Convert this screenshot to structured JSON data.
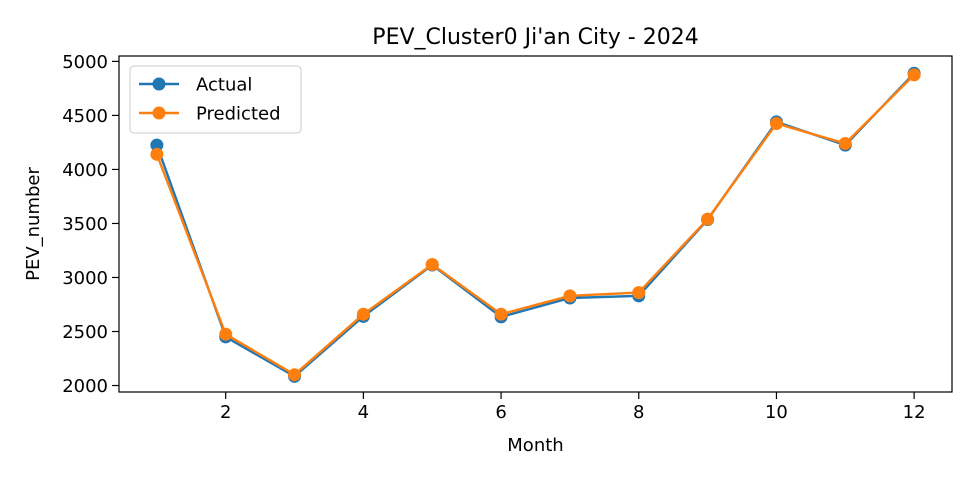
{
  "chart_data": {
    "type": "line",
    "title": "PEV_Cluster0 Ji'an City - 2024",
    "xlabel": "Month",
    "ylabel": "PEV_number",
    "x": [
      1,
      2,
      3,
      4,
      5,
      6,
      7,
      8,
      9,
      10,
      11,
      12
    ],
    "series": [
      {
        "name": "Actual",
        "color": "#1f77b4",
        "values": [
          4225,
          2450,
          2085,
          2640,
          3115,
          2635,
          2810,
          2830,
          3535,
          4440,
          4225,
          4890
        ]
      },
      {
        "name": "Predicted",
        "color": "#ff7f0e",
        "values": [
          4140,
          2475,
          2100,
          2660,
          3120,
          2660,
          2830,
          2860,
          3540,
          4425,
          4240,
          4875
        ]
      }
    ],
    "xlim": [
      0.45,
      12.55
    ],
    "ylim": [
      1940,
      5050
    ],
    "xticks": [
      2,
      4,
      6,
      8,
      10,
      12
    ],
    "yticks": [
      2000,
      2500,
      3000,
      3500,
      4000,
      4500,
      5000
    ],
    "grid": false,
    "legend_position": "top-left"
  }
}
